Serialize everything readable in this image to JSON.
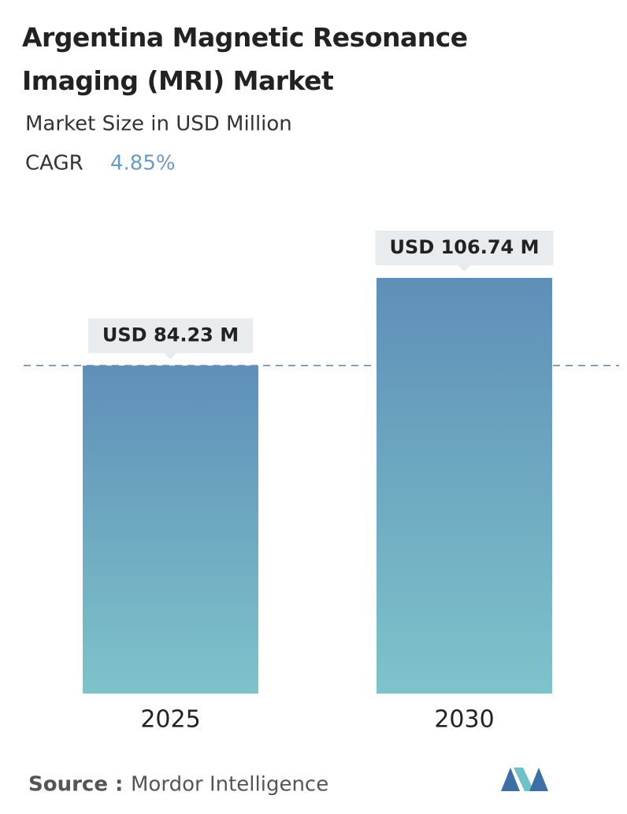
{
  "chart_data": {
    "type": "bar",
    "title": "Argentina Magnetic Resonance Imaging (MRI) Market",
    "subtitle": "Market Size in USD Million",
    "cagr_label": "CAGR",
    "cagr_value": "4.85%",
    "categories": [
      "2025",
      "2030"
    ],
    "values": [
      84.23,
      106.74
    ],
    "value_labels": [
      "USD 84.23 M",
      "USD 106.74 M"
    ],
    "source_label": "Source :",
    "source": "Mordor Intelligence"
  }
}
